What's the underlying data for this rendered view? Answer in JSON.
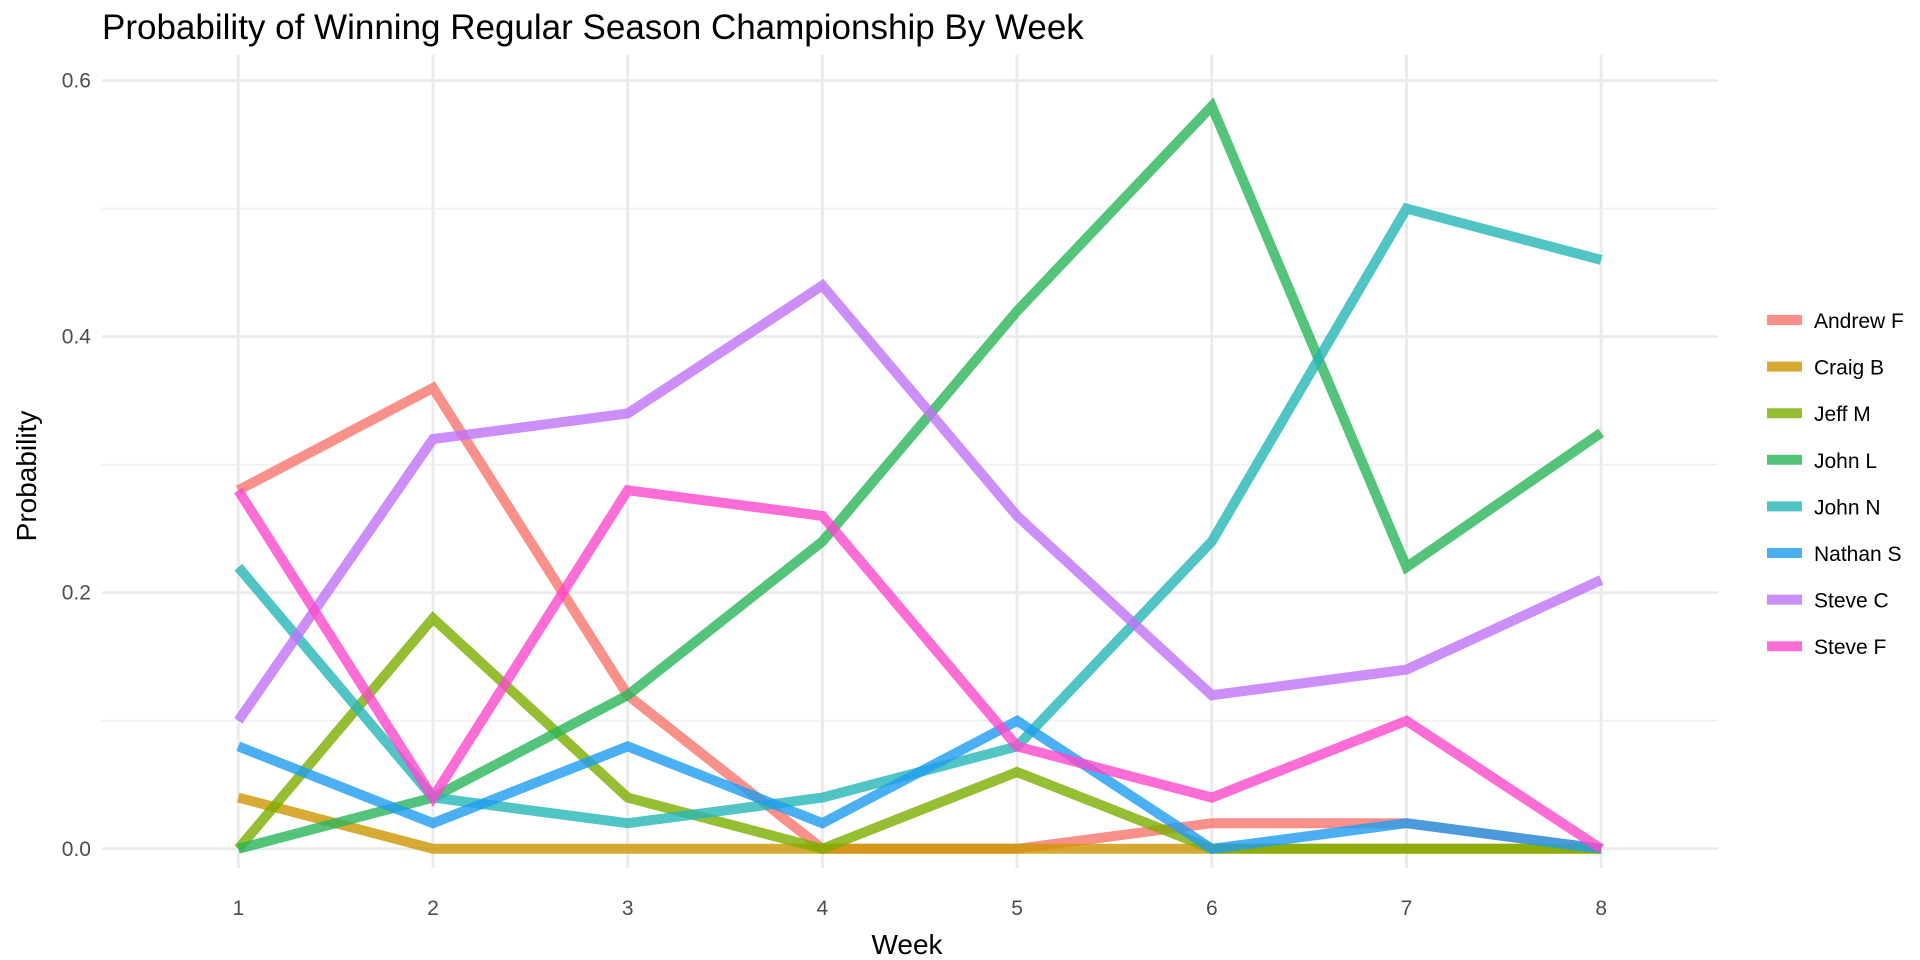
{
  "chart_data": {
    "type": "line",
    "title": "Probability of Winning Regular Season Championship By Week",
    "xlabel": "Week",
    "ylabel": "Probability",
    "x": [
      1,
      2,
      3,
      4,
      5,
      6,
      7,
      8
    ],
    "x_tick_labels": [
      "1",
      "2",
      "3",
      "4",
      "5",
      "6",
      "7",
      "8"
    ],
    "xlim": [
      0.3,
      8.6
    ],
    "ylim": [
      -0.015,
      0.62
    ],
    "y_ticks": [
      0.0,
      0.2,
      0.4,
      0.6
    ],
    "y_tick_labels": [
      "0.0",
      "0.2",
      "0.4",
      "0.6"
    ],
    "y_minor_ticks": [
      0.1,
      0.3,
      0.5
    ],
    "grid": true,
    "legend_position": "right",
    "series": [
      {
        "name": "Andrew F",
        "color": "#F8766D",
        "values": [
          0.28,
          0.36,
          0.12,
          0.0,
          0.0,
          0.02,
          0.02,
          0.0
        ]
      },
      {
        "name": "Craig B",
        "color": "#CD9600",
        "values": [
          0.04,
          0.0,
          0.0,
          0.0,
          0.0,
          0.0,
          0.0,
          0.0
        ]
      },
      {
        "name": "Jeff M",
        "color": "#7CAE00",
        "values": [
          0.0,
          0.18,
          0.04,
          0.0,
          0.06,
          0.0,
          0.0,
          0.0
        ]
      },
      {
        "name": "John L",
        "color": "#29B55A",
        "values": [
          0.0,
          0.04,
          0.12,
          0.24,
          0.42,
          0.58,
          0.22,
          0.325
        ]
      },
      {
        "name": "John N",
        "color": "#25B7B7",
        "values": [
          0.22,
          0.04,
          0.02,
          0.04,
          0.08,
          0.24,
          0.5,
          0.46
        ]
      },
      {
        "name": "Nathan S",
        "color": "#1E9CF0",
        "values": [
          0.08,
          0.02,
          0.08,
          0.02,
          0.1,
          0.0,
          0.02,
          0.0
        ]
      },
      {
        "name": "Steve C",
        "color": "#BF72F7",
        "values": [
          0.1,
          0.32,
          0.34,
          0.44,
          0.26,
          0.12,
          0.14,
          0.21
        ]
      },
      {
        "name": "Steve F",
        "color": "#FB48CC",
        "values": [
          0.28,
          0.04,
          0.28,
          0.26,
          0.08,
          0.04,
          0.1,
          0.0
        ]
      }
    ]
  }
}
